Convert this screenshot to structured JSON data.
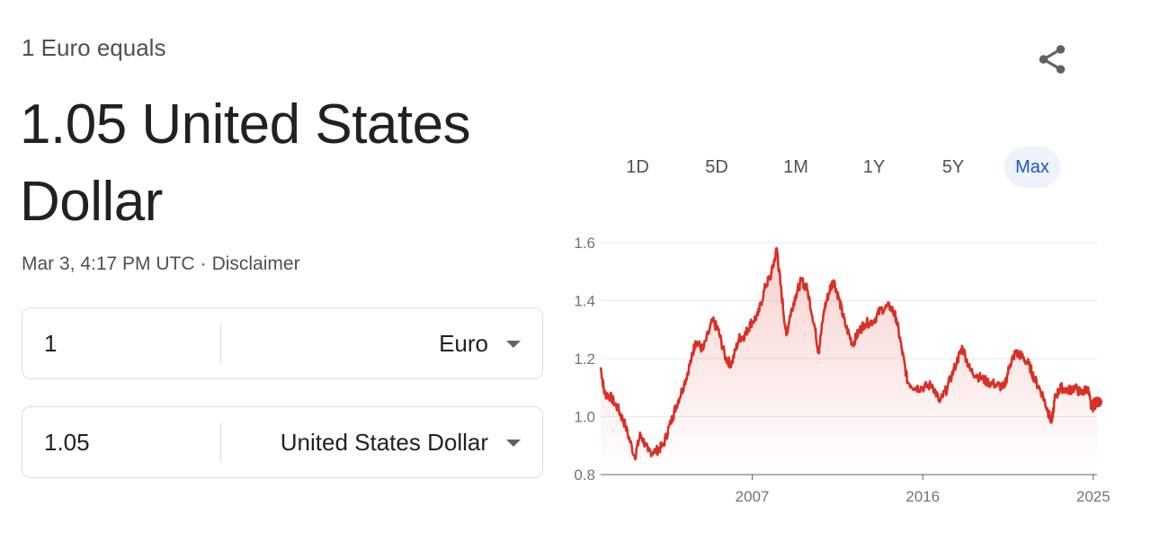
{
  "header": {
    "equals_label": "1 Euro equals",
    "result_line1": "1.05 United States",
    "result_line2": "Dollar",
    "timestamp": "Mar 3, 4:17 PM UTC",
    "separator": "·",
    "disclaimer": "Disclaimer"
  },
  "converter": {
    "from": {
      "amount": "1",
      "currency": "Euro"
    },
    "to": {
      "amount": "1.05",
      "currency": "United States Dollar"
    }
  },
  "icons": {
    "share": "share-icon",
    "dropdown": "chevron-down-icon"
  },
  "ranges": [
    {
      "label": "1D",
      "active": false
    },
    {
      "label": "5D",
      "active": false
    },
    {
      "label": "1M",
      "active": false
    },
    {
      "label": "1Y",
      "active": false
    },
    {
      "label": "5Y",
      "active": false
    },
    {
      "label": "Max",
      "active": true
    }
  ],
  "colors": {
    "line": "#d93025",
    "active_range": "#1a57c6",
    "active_range_bg": "#eef2fa"
  },
  "chart_data": {
    "type": "line",
    "title": "",
    "xlabel": "",
    "ylabel": "",
    "xlim": [
      1999.0,
      2025.2
    ],
    "ylim": [
      0.8,
      1.6
    ],
    "yticks": [
      {
        "value": 0.8,
        "label": "0.8"
      },
      {
        "value": 1.0,
        "label": "1.0"
      },
      {
        "value": 1.2,
        "label": "1.2"
      },
      {
        "value": 1.4,
        "label": "1.4"
      },
      {
        "value": 1.6,
        "label": "1.6"
      }
    ],
    "xticks": [
      {
        "value": 2007,
        "label": "2007"
      },
      {
        "value": 2016,
        "label": "2016"
      },
      {
        "value": 2025,
        "label": "2025"
      }
    ],
    "grid": true,
    "area_fill": true,
    "series": [
      {
        "x": [
          1999.0,
          1999.2,
          1999.5,
          1999.9,
          2000.3,
          2000.8,
          2001.1,
          2001.5,
          2001.9,
          2002.3,
          2002.7,
          2003.0,
          2003.4,
          2003.8,
          2004.0,
          2004.4,
          2004.9,
          2005.2,
          2005.6,
          2005.9,
          2006.3,
          2006.6,
          2006.9,
          2007.3,
          2007.7,
          2008.0,
          2008.3,
          2008.5,
          2008.8,
          2009.0,
          2009.3,
          2009.6,
          2009.9,
          2010.3,
          2010.5,
          2010.8,
          2011.1,
          2011.3,
          2011.6,
          2011.9,
          2012.3,
          2012.6,
          2012.9,
          2013.4,
          2013.8,
          2014.3,
          2014.6,
          2014.9,
          2015.2,
          2015.6,
          2016.0,
          2016.5,
          2016.9,
          2017.3,
          2017.8,
          2018.1,
          2018.5,
          2018.9,
          2019.4,
          2019.9,
          2020.3,
          2020.6,
          2020.9,
          2021.2,
          2021.6,
          2021.9,
          2022.3,
          2022.6,
          2022.8,
          2023.0,
          2023.3,
          2023.7,
          2024.0,
          2024.4,
          2024.7,
          2024.9,
          2025.2
        ],
        "y": [
          1.17,
          1.08,
          1.07,
          1.03,
          0.97,
          0.86,
          0.94,
          0.88,
          0.88,
          0.9,
          0.98,
          1.04,
          1.11,
          1.2,
          1.26,
          1.23,
          1.33,
          1.3,
          1.2,
          1.18,
          1.27,
          1.28,
          1.32,
          1.35,
          1.45,
          1.49,
          1.58,
          1.45,
          1.28,
          1.35,
          1.42,
          1.47,
          1.44,
          1.31,
          1.22,
          1.37,
          1.44,
          1.47,
          1.4,
          1.32,
          1.25,
          1.29,
          1.32,
          1.33,
          1.37,
          1.38,
          1.34,
          1.23,
          1.12,
          1.1,
          1.1,
          1.11,
          1.05,
          1.1,
          1.19,
          1.24,
          1.16,
          1.14,
          1.12,
          1.11,
          1.1,
          1.18,
          1.22,
          1.21,
          1.18,
          1.13,
          1.08,
          1.02,
          0.98,
          1.07,
          1.1,
          1.09,
          1.1,
          1.08,
          1.1,
          1.03,
          1.05
        ]
      }
    ],
    "marker": {
      "x": 2025.2,
      "y": 1.05
    }
  }
}
